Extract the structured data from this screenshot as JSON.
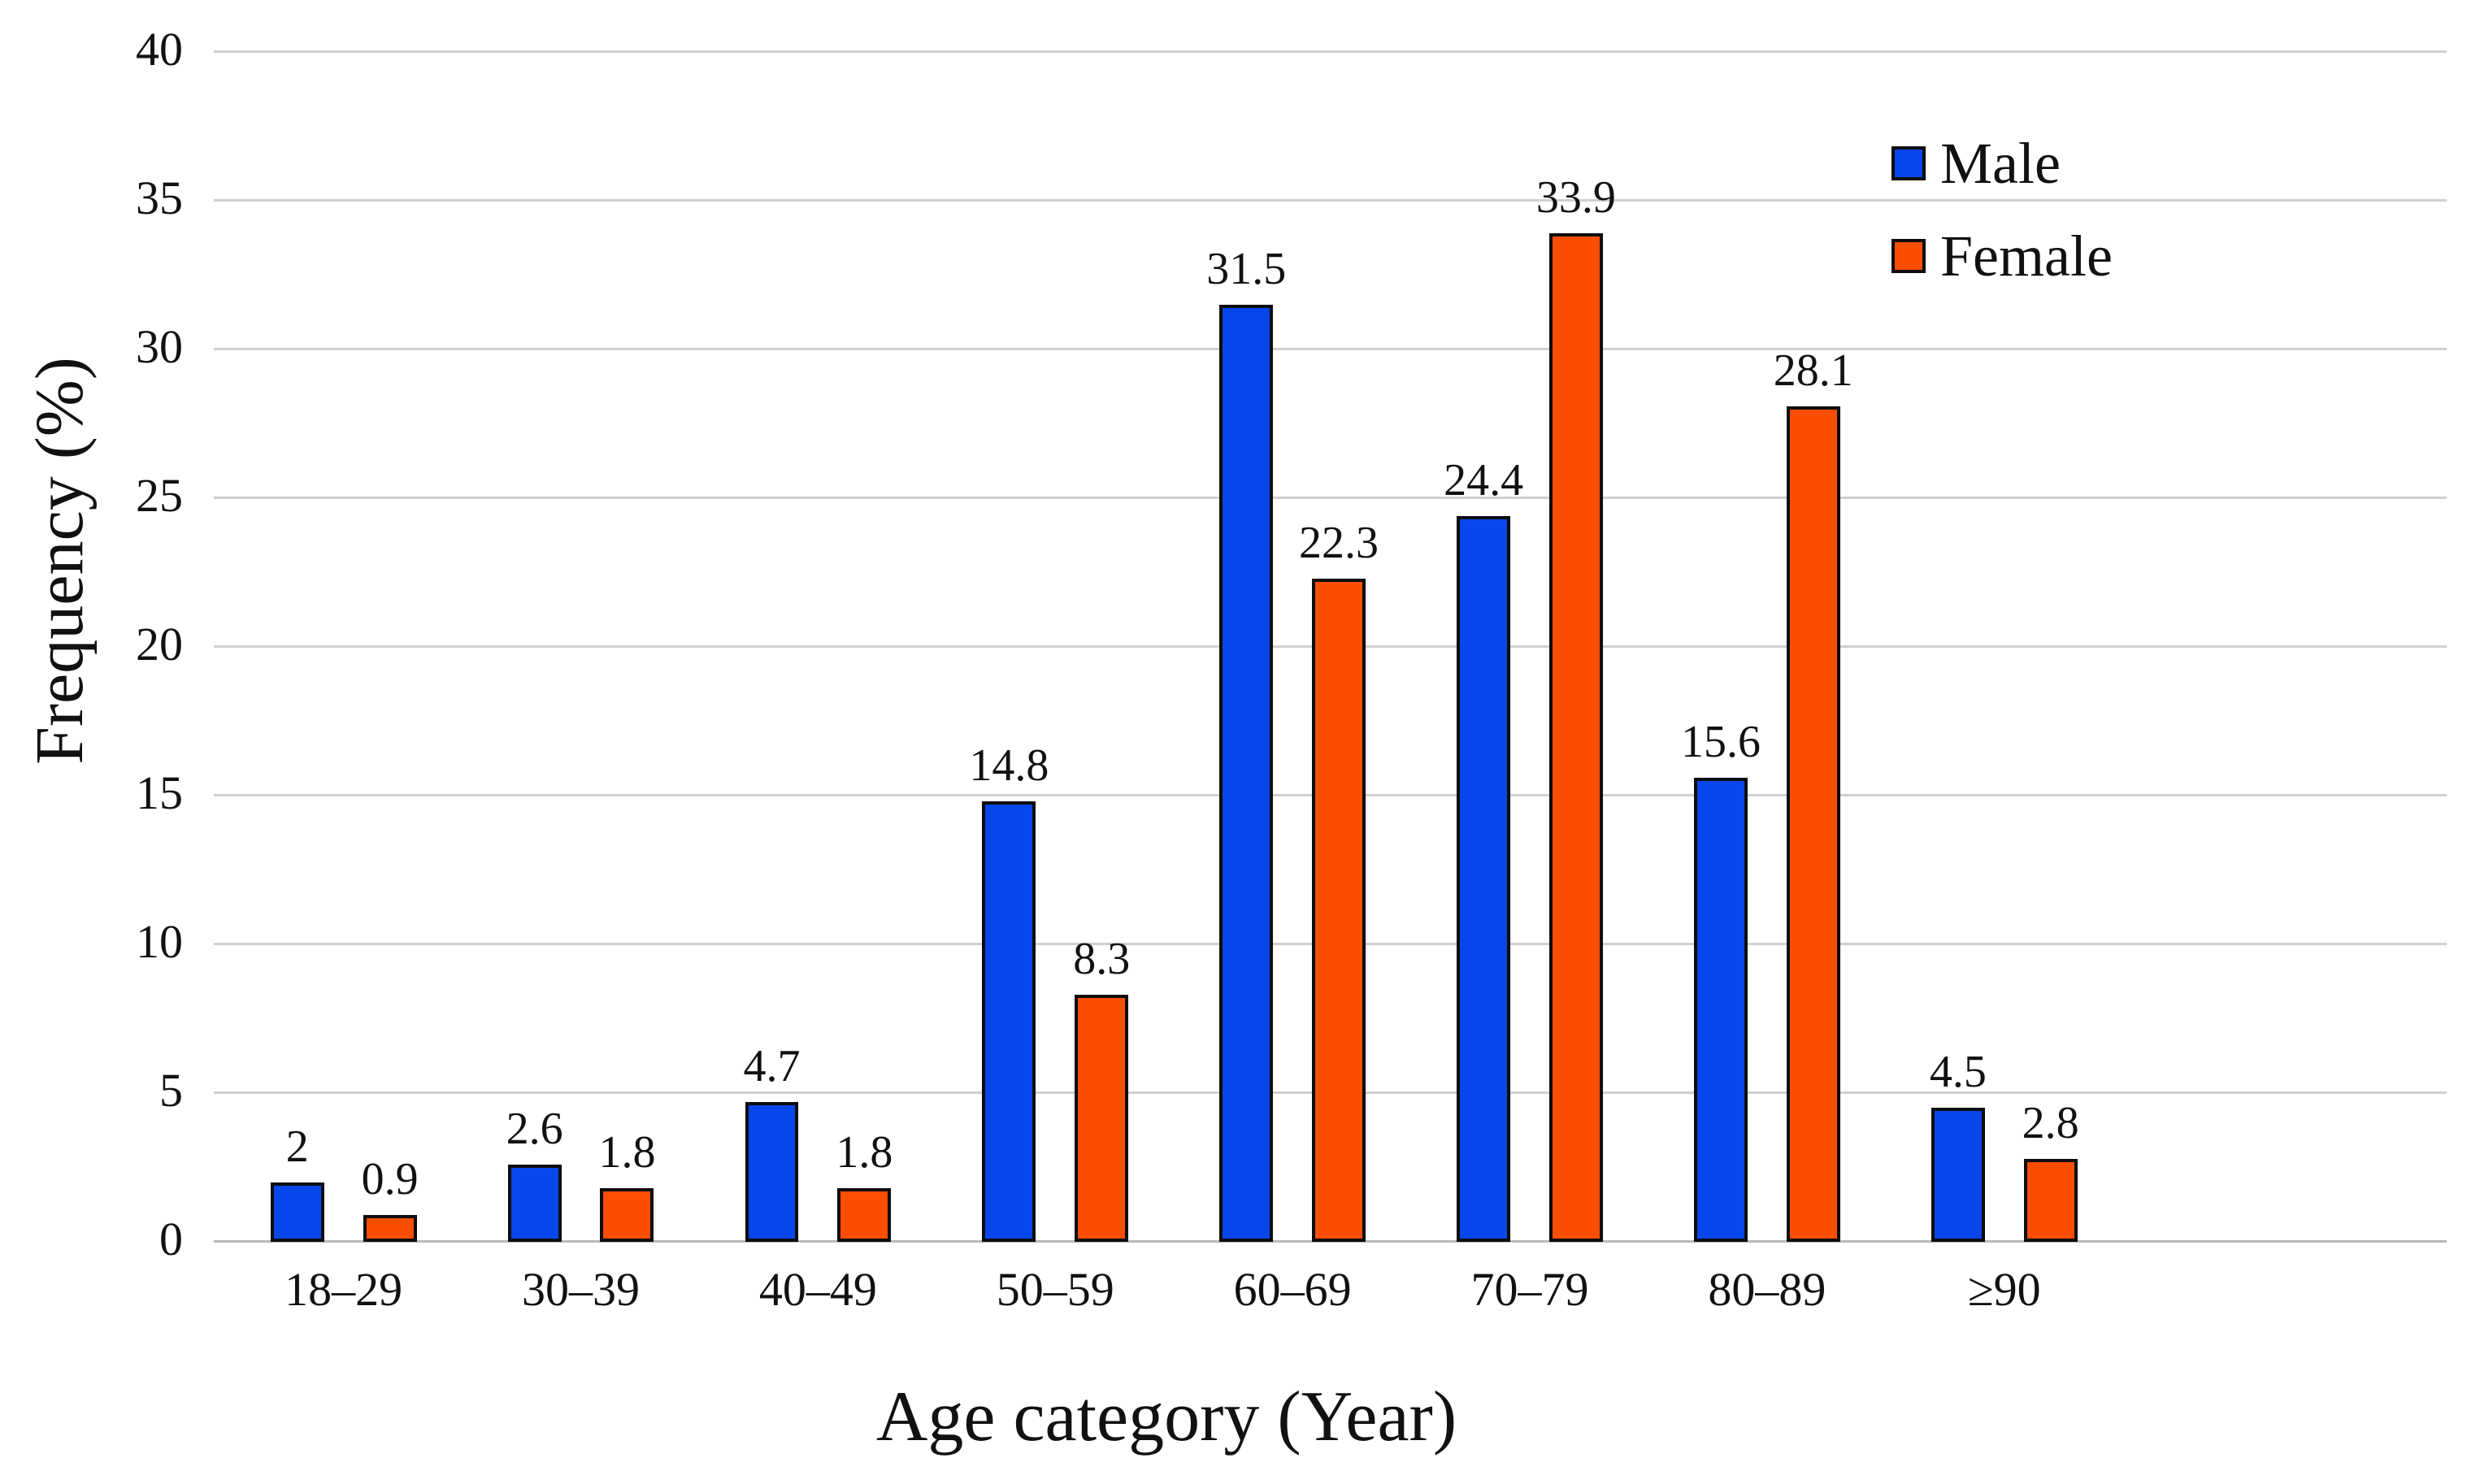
{
  "chart_data": {
    "type": "bar",
    "title": "",
    "xlabel": "Age category (Year)",
    "ylabel": "Frequency (%)",
    "categories": [
      "18–29",
      "30–39",
      "40–49",
      "50–59",
      "60–69",
      "70–79",
      "80–89",
      "≥90"
    ],
    "series": [
      {
        "name": "Male",
        "color": "#0847EB",
        "values": [
          2,
          2.6,
          4.7,
          14.8,
          31.5,
          24.4,
          15.6,
          4.5
        ],
        "labels": [
          "2",
          "2.6",
          "4.7",
          "14.8",
          "31.5",
          "24.4",
          "15.6",
          "4.5"
        ]
      },
      {
        "name": "Female",
        "color": "#FC4E03",
        "values": [
          0.9,
          1.8,
          1.8,
          8.3,
          22.3,
          33.9,
          28.1,
          2.8
        ],
        "labels": [
          "0.9",
          "1.8",
          "1.8",
          "8.3",
          "22.3",
          "33.9",
          "28.1",
          "2.8"
        ]
      }
    ],
    "ylim": [
      0,
      40
    ],
    "yticks": [
      0,
      5,
      10,
      15,
      20,
      25,
      30,
      35,
      40
    ],
    "grid": true,
    "legend_position": "top-right",
    "bar_outline_color": "#0d0d0d",
    "gridline_color": "#cfcfcf"
  }
}
